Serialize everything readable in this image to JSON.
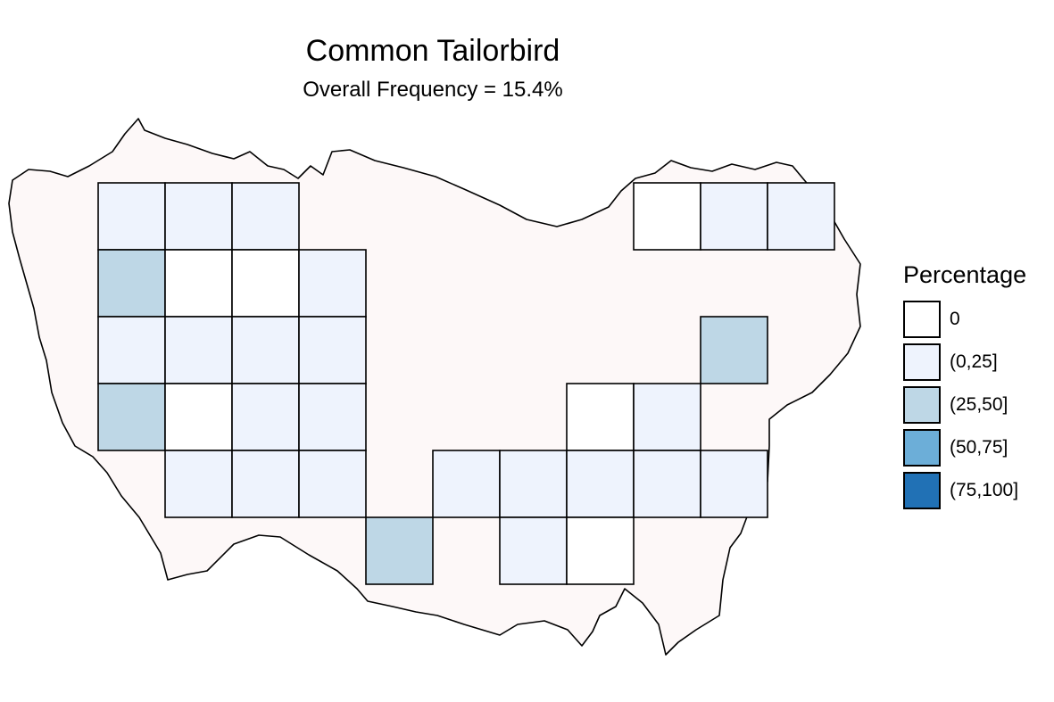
{
  "map": {
    "title": "Common Tailorbird",
    "subtitle": "Overall Frequency = 15.4%",
    "region_fill": "#fdf8f8",
    "cells": [
      {
        "row": 0,
        "col": 0,
        "cls": "(0,25]"
      },
      {
        "row": 0,
        "col": 1,
        "cls": "(0,25]"
      },
      {
        "row": 0,
        "col": 2,
        "cls": "(0,25]"
      },
      {
        "row": 0,
        "col": 8,
        "cls": "0"
      },
      {
        "row": 0,
        "col": 9,
        "cls": "(0,25]"
      },
      {
        "row": 0,
        "col": 10,
        "cls": "(0,25]"
      },
      {
        "row": 1,
        "col": 0,
        "cls": "(25,50]"
      },
      {
        "row": 1,
        "col": 1,
        "cls": "0"
      },
      {
        "row": 1,
        "col": 2,
        "cls": "0"
      },
      {
        "row": 1,
        "col": 3,
        "cls": "(0,25]"
      },
      {
        "row": 2,
        "col": 0,
        "cls": "(0,25]"
      },
      {
        "row": 2,
        "col": 1,
        "cls": "(0,25]"
      },
      {
        "row": 2,
        "col": 2,
        "cls": "(0,25]"
      },
      {
        "row": 2,
        "col": 3,
        "cls": "(0,25]"
      },
      {
        "row": 2,
        "col": 9,
        "cls": "(25,50]"
      },
      {
        "row": 3,
        "col": 0,
        "cls": "(25,50]"
      },
      {
        "row": 3,
        "col": 1,
        "cls": "0"
      },
      {
        "row": 3,
        "col": 2,
        "cls": "(0,25]"
      },
      {
        "row": 3,
        "col": 3,
        "cls": "(0,25]"
      },
      {
        "row": 3,
        "col": 7,
        "cls": "0"
      },
      {
        "row": 3,
        "col": 8,
        "cls": "(0,25]"
      },
      {
        "row": 4,
        "col": 1,
        "cls": "(0,25]"
      },
      {
        "row": 4,
        "col": 2,
        "cls": "(0,25]"
      },
      {
        "row": 4,
        "col": 3,
        "cls": "(0,25]"
      },
      {
        "row": 4,
        "col": 5,
        "cls": "(0,25]"
      },
      {
        "row": 4,
        "col": 6,
        "cls": "(0,25]"
      },
      {
        "row": 4,
        "col": 7,
        "cls": "(0,25]"
      },
      {
        "row": 4,
        "col": 8,
        "cls": "(0,25]"
      },
      {
        "row": 4,
        "col": 9,
        "cls": "(0,25]"
      },
      {
        "row": 5,
        "col": 4,
        "cls": "(25,50]"
      },
      {
        "row": 5,
        "col": 6,
        "cls": "(0,25]"
      },
      {
        "row": 5,
        "col": 7,
        "cls": "0"
      }
    ]
  },
  "legend": {
    "title": "Percentage",
    "items": [
      {
        "label": "0",
        "color": "#ffffff"
      },
      {
        "label": "(0,25]",
        "color": "#eef3fd"
      },
      {
        "label": "(25,50]",
        "color": "#bed7e6"
      },
      {
        "label": "(50,75]",
        "color": "#6caed8"
      },
      {
        "label": "(75,100]",
        "color": "#2171b5"
      }
    ]
  }
}
